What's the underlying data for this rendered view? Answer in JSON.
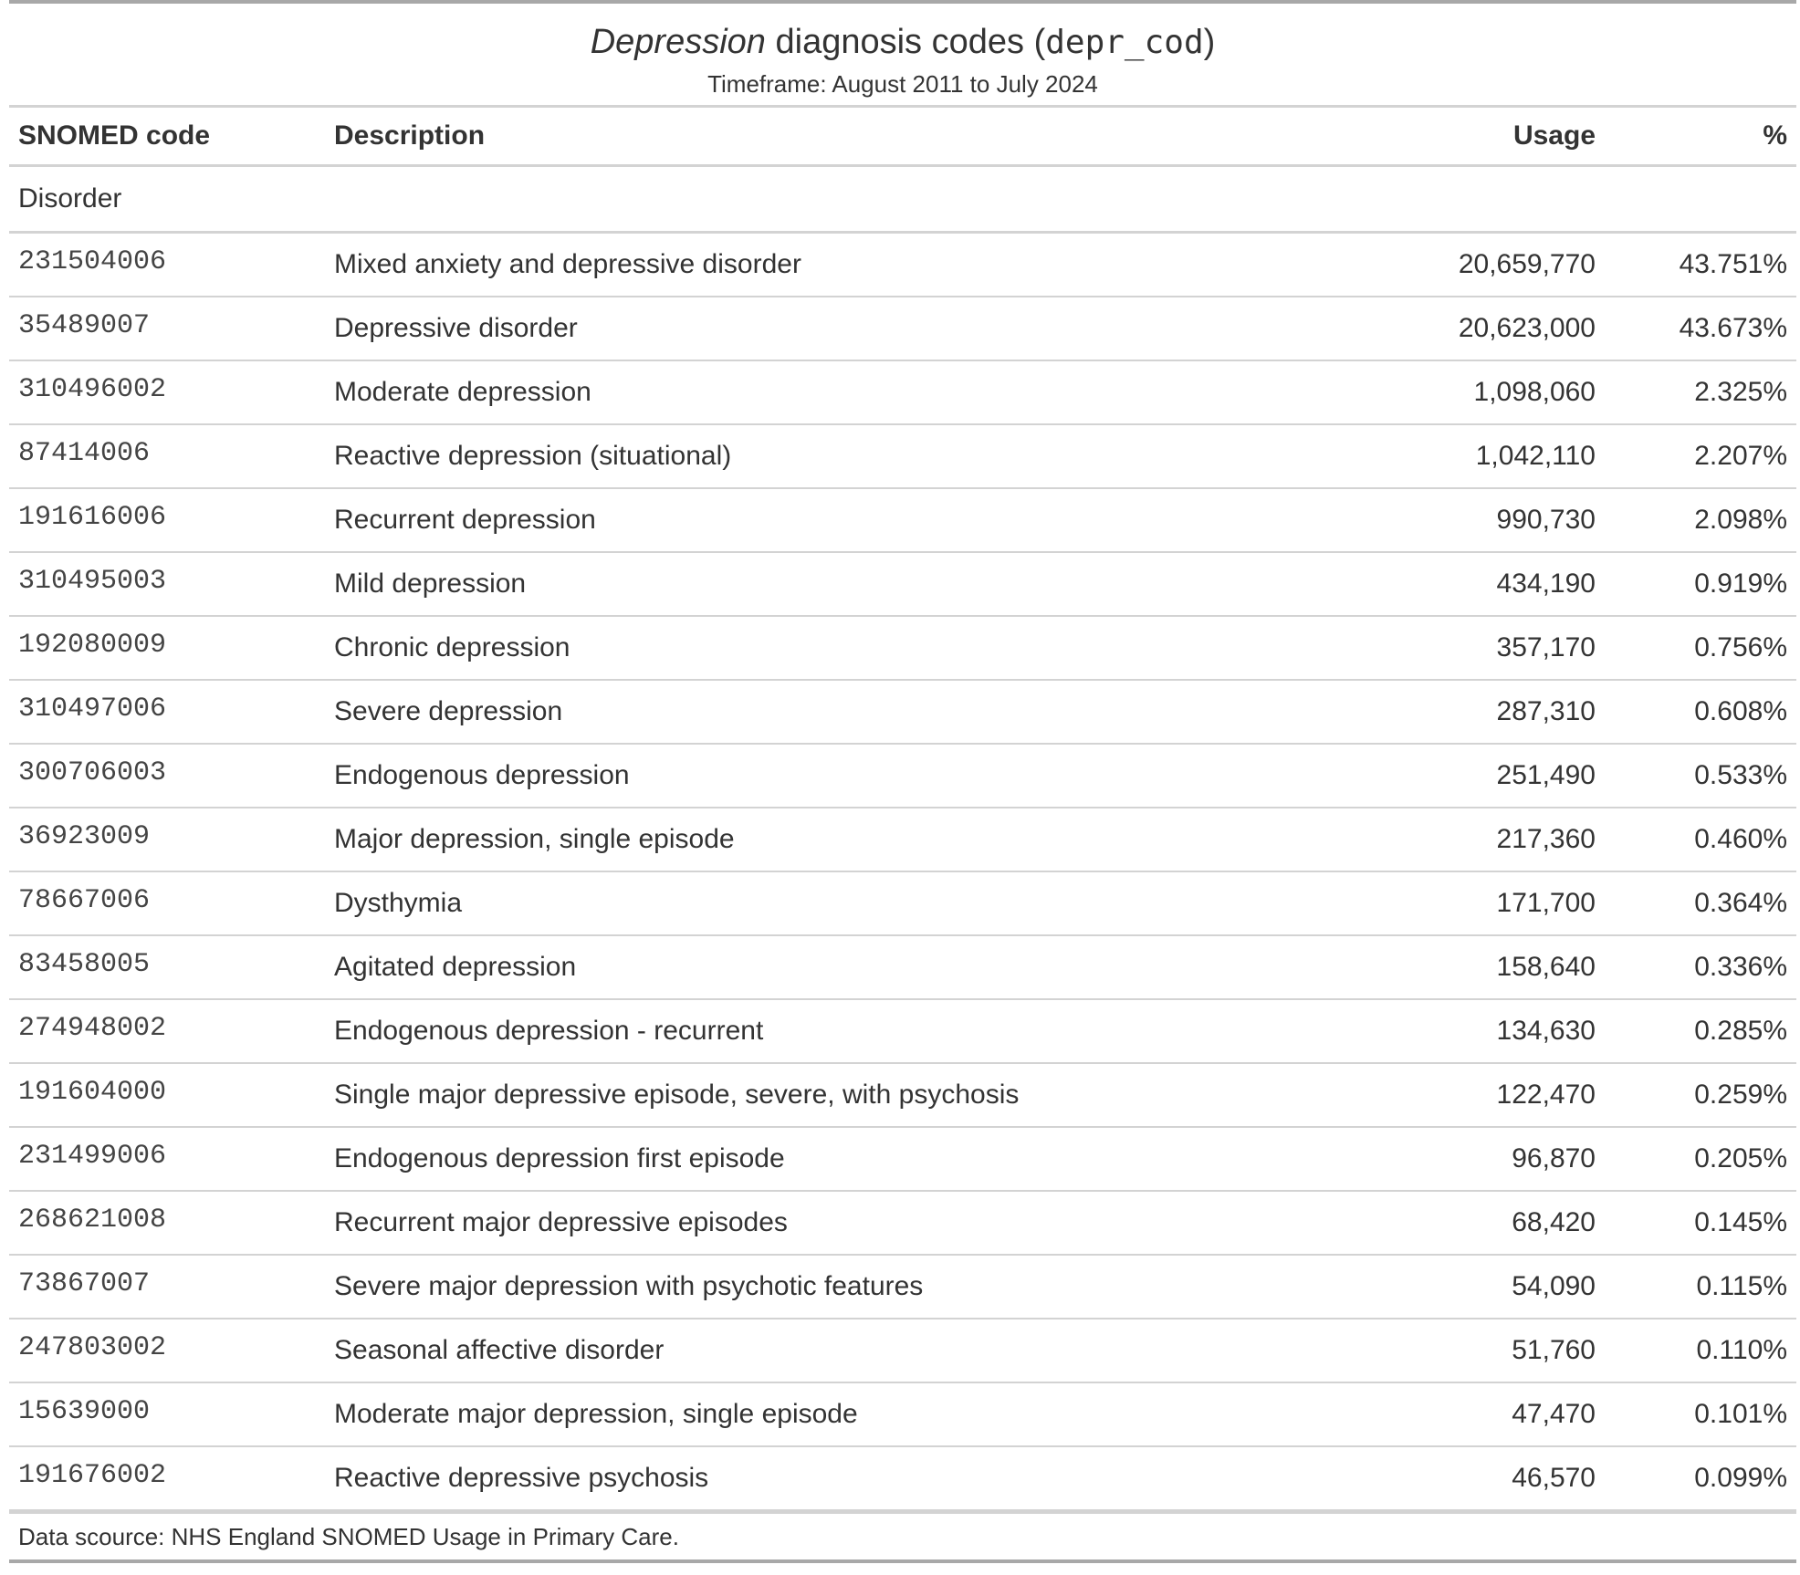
{
  "header": {
    "title_italic": "Depression",
    "title_middle": " diagnosis codes (",
    "title_code": "depr_cod",
    "title_end": ")",
    "subtitle": "Timeframe: August 2011 to July 2024"
  },
  "columns": {
    "code": "SNOMED code",
    "description": "Description",
    "usage": "Usage",
    "percent": "%"
  },
  "group_label": "Disorder",
  "rows": [
    {
      "code": "231504006",
      "description": "Mixed anxiety and depressive disorder",
      "usage": "20,659,770",
      "percent": "43.751%"
    },
    {
      "code": "35489007",
      "description": "Depressive disorder",
      "usage": "20,623,000",
      "percent": "43.673%"
    },
    {
      "code": "310496002",
      "description": "Moderate depression",
      "usage": "1,098,060",
      "percent": "2.325%"
    },
    {
      "code": "87414006",
      "description": "Reactive depression (situational)",
      "usage": "1,042,110",
      "percent": "2.207%"
    },
    {
      "code": "191616006",
      "description": "Recurrent depression",
      "usage": "990,730",
      "percent": "2.098%"
    },
    {
      "code": "310495003",
      "description": "Mild depression",
      "usage": "434,190",
      "percent": "0.919%"
    },
    {
      "code": "192080009",
      "description": "Chronic depression",
      "usage": "357,170",
      "percent": "0.756%"
    },
    {
      "code": "310497006",
      "description": "Severe depression",
      "usage": "287,310",
      "percent": "0.608%"
    },
    {
      "code": "300706003",
      "description": "Endogenous depression",
      "usage": "251,490",
      "percent": "0.533%"
    },
    {
      "code": "36923009",
      "description": "Major depression, single episode",
      "usage": "217,360",
      "percent": "0.460%"
    },
    {
      "code": "78667006",
      "description": "Dysthymia",
      "usage": "171,700",
      "percent": "0.364%"
    },
    {
      "code": "83458005",
      "description": "Agitated depression",
      "usage": "158,640",
      "percent": "0.336%"
    },
    {
      "code": "274948002",
      "description": "Endogenous depression - recurrent",
      "usage": "134,630",
      "percent": "0.285%"
    },
    {
      "code": "191604000",
      "description": "Single major depressive episode, severe, with psychosis",
      "usage": "122,470",
      "percent": "0.259%"
    },
    {
      "code": "231499006",
      "description": "Endogenous depression first episode",
      "usage": "96,870",
      "percent": "0.205%"
    },
    {
      "code": "268621008",
      "description": "Recurrent major depressive episodes",
      "usage": "68,420",
      "percent": "0.145%"
    },
    {
      "code": "73867007",
      "description": "Severe major depression with psychotic features",
      "usage": "54,090",
      "percent": "0.115%"
    },
    {
      "code": "247803002",
      "description": "Seasonal affective disorder",
      "usage": "51,760",
      "percent": "0.110%"
    },
    {
      "code": "15639000",
      "description": "Moderate major depression, single episode",
      "usage": "47,470",
      "percent": "0.101%"
    },
    {
      "code": "191676002",
      "description": "Reactive depressive psychosis",
      "usage": "46,570",
      "percent": "0.099%"
    }
  ],
  "footer": "Data scource: NHS England SNOMED Usage in Primary Care."
}
